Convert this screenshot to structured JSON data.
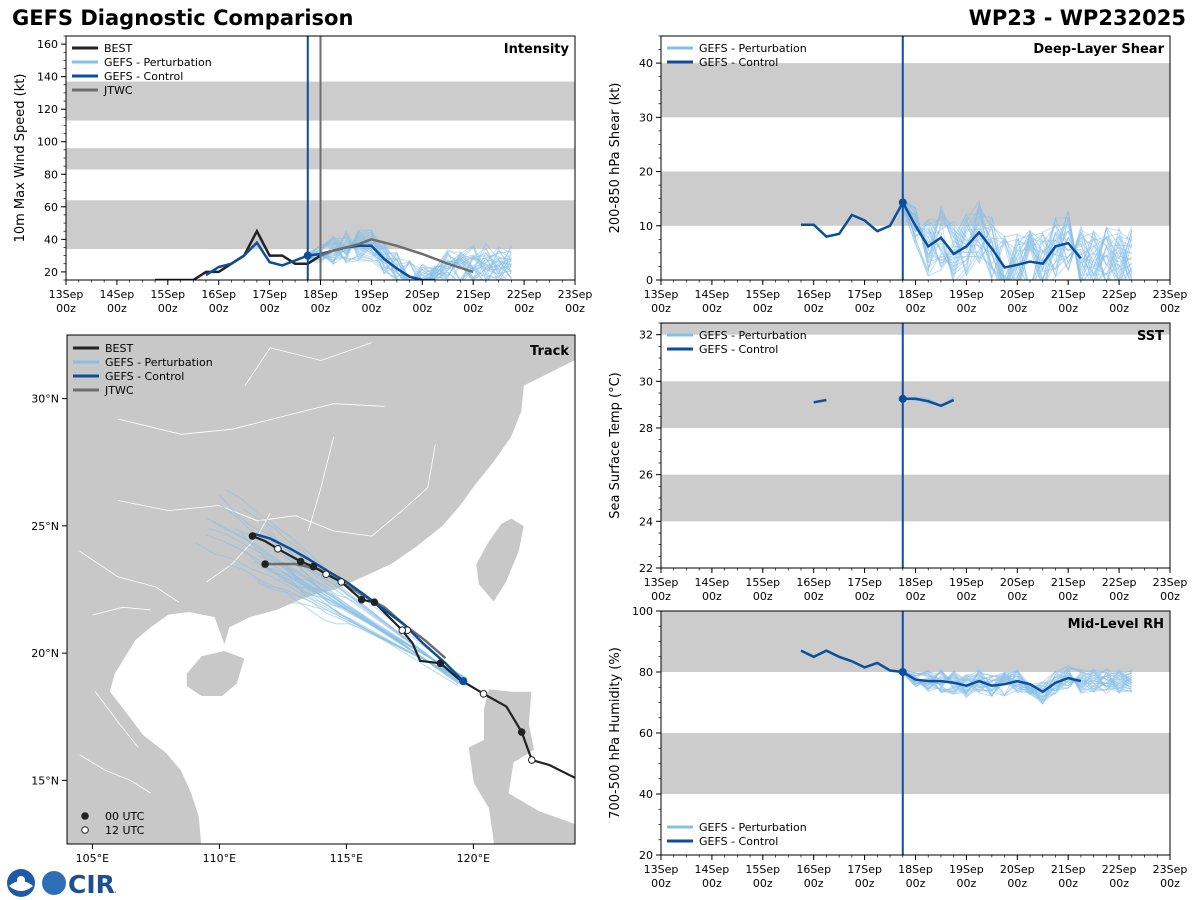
{
  "header": {
    "title": "GEFS Diagnostic Comparison",
    "storm": "WP23 - WP232025"
  },
  "colors": {
    "best": "#222222",
    "pert": "#88bfe6",
    "control": "#0b4f9c",
    "jtwc": "#6e6e6e",
    "band": "#cccccc",
    "land": "#c8c8c8"
  },
  "logo": {
    "text": "CIRA"
  },
  "time_axis": {
    "ticks": [
      {
        "day": "13Sep",
        "hour": "00z"
      },
      {
        "day": "14Sep",
        "hour": "00z"
      },
      {
        "day": "15Sep",
        "hour": "00z"
      },
      {
        "day": "16Sep",
        "hour": "00z"
      },
      {
        "day": "17Sep",
        "hour": "00z"
      },
      {
        "day": "18Sep",
        "hour": "00z"
      },
      {
        "day": "19Sep",
        "hour": "00z"
      },
      {
        "day": "20Sep",
        "hour": "00z"
      },
      {
        "day": "21Sep",
        "hour": "00z"
      },
      {
        "day": "22Sep",
        "hour": "00z"
      },
      {
        "day": "23Sep",
        "hour": "00z"
      }
    ],
    "init_day": 4.75
  },
  "chart_data": [
    {
      "type": "line",
      "id": "intensity",
      "title": "Intensity",
      "ylabel": "10m Max Wind Speed (kt)",
      "ylim": [
        15,
        165
      ],
      "yticks": [
        20,
        40,
        60,
        80,
        100,
        120,
        140,
        160
      ],
      "bands": [
        [
          34,
          64
        ],
        [
          83,
          96
        ],
        [
          113,
          137
        ]
      ],
      "legend": [
        "BEST",
        "GEFS - Perturbation",
        "GEFS - Control",
        "JTWC"
      ],
      "jtwc_init_day": 5.0,
      "series": [
        {
          "name": "BEST",
          "x": [
            1.75,
            2.0,
            2.25,
            2.5,
            2.75,
            3.0,
            3.25,
            3.5,
            3.75,
            4.0,
            4.25,
            4.5,
            4.75,
            5.0
          ],
          "y": [
            15,
            15,
            15,
            15,
            20,
            20,
            25,
            30,
            45,
            30,
            30,
            25,
            25,
            30
          ]
        },
        {
          "name": "GEFS - Control",
          "x": [
            2.75,
            3.0,
            3.25,
            3.5,
            3.75,
            4.0,
            4.25,
            4.5,
            4.75,
            5.0,
            5.25,
            5.5,
            5.75,
            6.0,
            6.25,
            6.5,
            6.75,
            7.0,
            7.25
          ],
          "y": [
            18,
            23,
            25,
            30,
            38,
            26,
            24,
            27,
            30,
            31,
            33,
            35,
            36,
            36,
            28,
            22,
            17,
            15,
            15
          ]
        },
        {
          "name": "JTWC",
          "x": [
            5.0,
            5.25,
            5.5,
            5.75,
            6.0,
            6.5,
            7.0,
            7.5,
            8.0
          ],
          "y": [
            30,
            33,
            35,
            37,
            40,
            36,
            31,
            25,
            20
          ]
        }
      ]
    },
    {
      "type": "line",
      "id": "shear",
      "title": "Deep-Layer Shear",
      "ylabel": "200-850 hPa Shear (kt)",
      "ylim": [
        0,
        45
      ],
      "yticks": [
        0,
        10,
        20,
        30,
        40
      ],
      "bands": [
        [
          10,
          20
        ],
        [
          30,
          40
        ]
      ],
      "legend": [
        "GEFS - Perturbation",
        "GEFS - Control"
      ],
      "series": [
        {
          "name": "GEFS - Control",
          "x": [
            2.75,
            3.0,
            3.25,
            3.5,
            3.75,
            4.0,
            4.25,
            4.5,
            4.75,
            5.0,
            5.25,
            5.5,
            5.75,
            6.0,
            6.25,
            6.5,
            6.75,
            7.0,
            7.25,
            7.5,
            7.75,
            8.0,
            8.25
          ],
          "y": [
            10.2,
            10.2,
            8.0,
            8.5,
            12.0,
            11.0,
            9.0,
            10.0,
            14.3,
            10.0,
            6.2,
            7.8,
            4.8,
            6.2,
            8.8,
            5.8,
            2.3,
            2.8,
            3.4,
            3.0,
            6.2,
            6.8,
            4.0
          ]
        }
      ]
    },
    {
      "type": "line",
      "id": "sst",
      "title": "SST",
      "ylabel": "Sea Surface Temp (°C)",
      "ylim": [
        22,
        32.5
      ],
      "yticks": [
        22,
        24,
        26,
        28,
        30,
        32
      ],
      "bands": [
        [
          24,
          26
        ],
        [
          28,
          30
        ],
        [
          32,
          33
        ]
      ],
      "legend": [
        "GEFS - Perturbation",
        "GEFS - Control"
      ],
      "series": [
        {
          "name": "GEFS - Control",
          "x": [
            3.0,
            3.25
          ],
          "y": [
            29.1,
            29.2
          ]
        },
        {
          "name": "GEFS - Control",
          "x": [
            4.75,
            5.0,
            5.25,
            5.5,
            5.75
          ],
          "y": [
            29.25,
            29.25,
            29.15,
            28.95,
            29.2
          ]
        }
      ]
    },
    {
      "type": "line",
      "id": "rh",
      "title": "Mid-Level RH",
      "ylabel": "700-500 hPa Humidity (%)",
      "ylim": [
        20,
        100
      ],
      "yticks": [
        20,
        40,
        60,
        80,
        100
      ],
      "bands": [
        [
          40,
          60
        ],
        [
          80,
          100
        ]
      ],
      "legend": [
        "GEFS - Perturbation",
        "GEFS - Control"
      ],
      "series": [
        {
          "name": "GEFS - Control",
          "x": [
            2.75,
            3.0,
            3.25,
            3.5,
            3.75,
            4.0,
            4.25,
            4.5,
            4.75,
            5.0,
            5.25,
            5.5,
            5.75,
            6.0,
            6.25,
            6.5,
            6.75,
            7.0,
            7.25,
            7.5,
            7.75,
            8.0,
            8.25
          ],
          "y": [
            87,
            85,
            87,
            85,
            83.5,
            81.5,
            83,
            80.5,
            80,
            77.5,
            77,
            77,
            76.5,
            75.5,
            77,
            75.5,
            76,
            77,
            76,
            73.5,
            76.5,
            78,
            77
          ]
        }
      ]
    },
    {
      "type": "scatter",
      "id": "track",
      "title": "Track",
      "xlim": [
        104,
        124
      ],
      "ylim": [
        12.5,
        32.5
      ],
      "xticks": [
        "105°E",
        "110°E",
        "115°E",
        "120°E"
      ],
      "xtick_values": [
        105,
        110,
        115,
        120
      ],
      "yticks": [
        "15°N",
        "20°N",
        "25°N",
        "30°N"
      ],
      "ytick_values": [
        15,
        20,
        25,
        30
      ],
      "legend": [
        "BEST",
        "GEFS - Perturbation",
        "GEFS - Control",
        "JTWC"
      ],
      "marker_legend": [
        "00 UTC",
        "12 UTC"
      ],
      "best": {
        "lon": [
          124.0,
          123.0,
          122.3,
          121.9,
          121.3,
          120.4,
          119.4,
          118.7,
          117.9,
          117.6,
          117.1,
          116.1,
          115.6,
          114.8,
          114.2,
          113.7,
          113.2,
          112.3,
          111.8,
          111.3
        ],
        "lat": [
          15.1,
          15.6,
          15.8,
          16.9,
          17.9,
          18.4,
          19.0,
          19.6,
          19.7,
          20.4,
          21.0,
          22.0,
          22.1,
          22.8,
          23.1,
          23.4,
          23.6,
          24.1,
          24.4,
          24.6
        ],
        "fix_lon": [
          122.3,
          121.9,
          120.4,
          118.7,
          117.4,
          117.2,
          116.1,
          115.6,
          114.8,
          114.2,
          113.7,
          113.2,
          112.3,
          111.3,
          111.8
        ],
        "fix_lat": [
          15.8,
          16.9,
          18.4,
          19.6,
          20.9,
          20.9,
          22.0,
          22.1,
          22.8,
          23.1,
          23.4,
          23.6,
          24.1,
          24.6,
          23.5
        ],
        "fix_type": [
          "12",
          "00",
          "12",
          "00",
          "12",
          "12",
          "00",
          "00",
          "12",
          "12",
          "00",
          "00",
          "12",
          "00",
          "00"
        ]
      },
      "control": {
        "lon": [
          119.6,
          118.9,
          118.0,
          117.3,
          116.5,
          115.7,
          115.0,
          114.3,
          113.5,
          112.8,
          112.0,
          111.3
        ],
        "lat": [
          18.9,
          19.6,
          20.4,
          21.1,
          21.7,
          22.3,
          22.8,
          23.2,
          23.7,
          24.1,
          24.5,
          24.7
        ]
      },
      "jtwc": {
        "lon": [
          118.9,
          118.1,
          117.3,
          116.5,
          115.6,
          114.8,
          113.9,
          113.0,
          111.8
        ],
        "lat": [
          19.8,
          20.5,
          21.1,
          21.8,
          22.3,
          22.8,
          23.3,
          23.5,
          23.5
        ]
      }
    }
  ]
}
